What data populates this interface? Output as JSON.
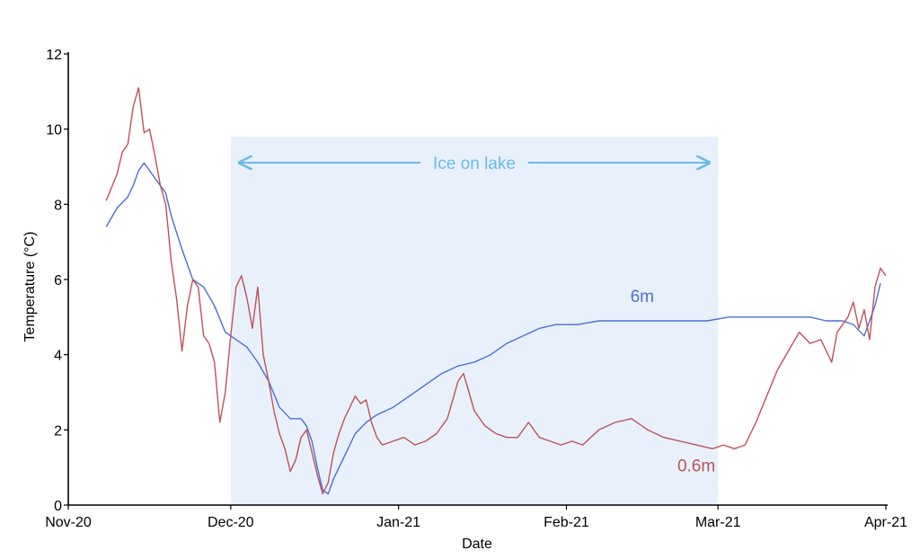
{
  "chart_data": {
    "type": "line",
    "xlabel": "Date",
    "ylabel": "Temperature (°C)",
    "ylim": [
      0,
      12
    ],
    "yticks": [
      0,
      2,
      4,
      6,
      8,
      10,
      12
    ],
    "xlim": [
      "2020-11-01",
      "2021-04-01"
    ],
    "xticks": [
      {
        "date": "2020-11-01",
        "label": "Nov-20"
      },
      {
        "date": "2020-12-01",
        "label": "Dec-20"
      },
      {
        "date": "2021-01-01",
        "label": "Jan-21"
      },
      {
        "date": "2021-02-01",
        "label": "Feb-21"
      },
      {
        "date": "2021-03-01",
        "label": "Mar-21"
      },
      {
        "date": "2021-04-01",
        "label": "Apr-21"
      }
    ],
    "grid": false,
    "annotation": {
      "label": "Ice on lake",
      "start": "2020-12-01",
      "end": "2021-03-01",
      "color": "#e8f1fb",
      "arrow_color": "#6ab8ee",
      "ymax": 9.8
    },
    "series": [
      {
        "name": "6m",
        "color": "#4a6fd6",
        "label_at": {
          "date": "2021-02-15",
          "value": 5.4
        },
        "points": [
          [
            "2020-11-08",
            7.4
          ],
          [
            "2020-11-10",
            7.9
          ],
          [
            "2020-11-12",
            8.2
          ],
          [
            "2020-11-13",
            8.5
          ],
          [
            "2020-11-14",
            8.9
          ],
          [
            "2020-11-15",
            9.1
          ],
          [
            "2020-11-17",
            8.7
          ],
          [
            "2020-11-19",
            8.3
          ],
          [
            "2020-11-20",
            7.7
          ],
          [
            "2020-11-22",
            6.8
          ],
          [
            "2020-11-24",
            6.0
          ],
          [
            "2020-11-26",
            5.8
          ],
          [
            "2020-11-28",
            5.3
          ],
          [
            "2020-11-30",
            4.6
          ],
          [
            "2020-12-01",
            4.5
          ],
          [
            "2020-12-02",
            4.4
          ],
          [
            "2020-12-04",
            4.2
          ],
          [
            "2020-12-06",
            3.8
          ],
          [
            "2020-12-08",
            3.3
          ],
          [
            "2020-12-10",
            2.6
          ],
          [
            "2020-12-12",
            2.3
          ],
          [
            "2020-12-14",
            2.3
          ],
          [
            "2020-12-15",
            2.1
          ],
          [
            "2020-12-16",
            1.7
          ],
          [
            "2020-12-17",
            1.0
          ],
          [
            "2020-12-18",
            0.4
          ],
          [
            "2020-12-19",
            0.3
          ],
          [
            "2020-12-20",
            0.7
          ],
          [
            "2020-12-22",
            1.3
          ],
          [
            "2020-12-24",
            1.9
          ],
          [
            "2020-12-26",
            2.2
          ],
          [
            "2020-12-28",
            2.4
          ],
          [
            "2020-12-31",
            2.6
          ],
          [
            "2021-01-03",
            2.9
          ],
          [
            "2021-01-06",
            3.2
          ],
          [
            "2021-01-09",
            3.5
          ],
          [
            "2021-01-12",
            3.7
          ],
          [
            "2021-01-15",
            3.8
          ],
          [
            "2021-01-18",
            4.0
          ],
          [
            "2021-01-21",
            4.3
          ],
          [
            "2021-01-24",
            4.5
          ],
          [
            "2021-01-27",
            4.7
          ],
          [
            "2021-01-30",
            4.8
          ],
          [
            "2021-02-03",
            4.8
          ],
          [
            "2021-02-07",
            4.9
          ],
          [
            "2021-02-11",
            4.9
          ],
          [
            "2021-02-15",
            4.9
          ],
          [
            "2021-02-19",
            4.9
          ],
          [
            "2021-02-23",
            4.9
          ],
          [
            "2021-02-27",
            4.9
          ],
          [
            "2021-03-03",
            5.0
          ],
          [
            "2021-03-07",
            5.0
          ],
          [
            "2021-03-11",
            5.0
          ],
          [
            "2021-03-15",
            5.0
          ],
          [
            "2021-03-18",
            5.0
          ],
          [
            "2021-03-21",
            4.9
          ],
          [
            "2021-03-24",
            4.9
          ],
          [
            "2021-03-26",
            4.8
          ],
          [
            "2021-03-28",
            4.5
          ],
          [
            "2021-03-29",
            4.9
          ],
          [
            "2021-03-30",
            5.3
          ],
          [
            "2021-03-31",
            5.9
          ]
        ]
      },
      {
        "name": "0.6m",
        "color": "#c0505a",
        "label_at": {
          "date": "2021-02-25",
          "value": 0.9
        },
        "points": [
          [
            "2020-11-08",
            8.1
          ],
          [
            "2020-11-10",
            8.8
          ],
          [
            "2020-11-11",
            9.4
          ],
          [
            "2020-11-12",
            9.6
          ],
          [
            "2020-11-13",
            10.6
          ],
          [
            "2020-11-14",
            11.1
          ],
          [
            "2020-11-15",
            9.9
          ],
          [
            "2020-11-16",
            10.0
          ],
          [
            "2020-11-17",
            9.3
          ],
          [
            "2020-11-18",
            8.5
          ],
          [
            "2020-11-19",
            8.0
          ],
          [
            "2020-11-20",
            6.5
          ],
          [
            "2020-11-21",
            5.5
          ],
          [
            "2020-11-22",
            4.1
          ],
          [
            "2020-11-23",
            5.3
          ],
          [
            "2020-11-24",
            6.0
          ],
          [
            "2020-11-25",
            5.8
          ],
          [
            "2020-11-26",
            4.5
          ],
          [
            "2020-11-27",
            4.3
          ],
          [
            "2020-11-28",
            3.8
          ],
          [
            "2020-11-29",
            2.2
          ],
          [
            "2020-11-30",
            3.0
          ],
          [
            "2020-12-01",
            4.5
          ],
          [
            "2020-12-02",
            5.8
          ],
          [
            "2020-12-03",
            6.1
          ],
          [
            "2020-12-04",
            5.5
          ],
          [
            "2020-12-05",
            4.7
          ],
          [
            "2020-12-06",
            5.8
          ],
          [
            "2020-12-07",
            4.0
          ],
          [
            "2020-12-08",
            3.3
          ],
          [
            "2020-12-09",
            2.5
          ],
          [
            "2020-12-10",
            1.9
          ],
          [
            "2020-12-11",
            1.5
          ],
          [
            "2020-12-12",
            0.9
          ],
          [
            "2020-12-13",
            1.2
          ],
          [
            "2020-12-14",
            1.8
          ],
          [
            "2020-12-15",
            2.0
          ],
          [
            "2020-12-16",
            1.4
          ],
          [
            "2020-12-17",
            0.8
          ],
          [
            "2020-12-18",
            0.3
          ],
          [
            "2020-12-19",
            0.6
          ],
          [
            "2020-12-20",
            1.4
          ],
          [
            "2020-12-21",
            1.9
          ],
          [
            "2020-12-22",
            2.3
          ],
          [
            "2020-12-23",
            2.6
          ],
          [
            "2020-12-24",
            2.9
          ],
          [
            "2020-12-25",
            2.7
          ],
          [
            "2020-12-26",
            2.8
          ],
          [
            "2020-12-27",
            2.2
          ],
          [
            "2020-12-28",
            1.8
          ],
          [
            "2020-12-29",
            1.6
          ],
          [
            "2020-12-31",
            1.7
          ],
          [
            "2021-01-02",
            1.8
          ],
          [
            "2021-01-04",
            1.6
          ],
          [
            "2021-01-06",
            1.7
          ],
          [
            "2021-01-08",
            1.9
          ],
          [
            "2021-01-10",
            2.3
          ],
          [
            "2021-01-11",
            2.8
          ],
          [
            "2021-01-12",
            3.3
          ],
          [
            "2021-01-13",
            3.5
          ],
          [
            "2021-01-14",
            3.0
          ],
          [
            "2021-01-15",
            2.5
          ],
          [
            "2021-01-17",
            2.1
          ],
          [
            "2021-01-19",
            1.9
          ],
          [
            "2021-01-21",
            1.8
          ],
          [
            "2021-01-23",
            1.8
          ],
          [
            "2021-01-25",
            2.2
          ],
          [
            "2021-01-27",
            1.8
          ],
          [
            "2021-01-29",
            1.7
          ],
          [
            "2021-01-31",
            1.6
          ],
          [
            "2021-02-02",
            1.7
          ],
          [
            "2021-02-04",
            1.6
          ],
          [
            "2021-02-07",
            2.0
          ],
          [
            "2021-02-10",
            2.2
          ],
          [
            "2021-02-13",
            2.3
          ],
          [
            "2021-02-16",
            2.0
          ],
          [
            "2021-02-19",
            1.8
          ],
          [
            "2021-02-22",
            1.7
          ],
          [
            "2021-02-25",
            1.6
          ],
          [
            "2021-02-28",
            1.5
          ],
          [
            "2021-03-02",
            1.6
          ],
          [
            "2021-03-04",
            1.5
          ],
          [
            "2021-03-06",
            1.6
          ],
          [
            "2021-03-08",
            2.2
          ],
          [
            "2021-03-10",
            2.9
          ],
          [
            "2021-03-12",
            3.6
          ],
          [
            "2021-03-14",
            4.1
          ],
          [
            "2021-03-16",
            4.6
          ],
          [
            "2021-03-18",
            4.3
          ],
          [
            "2021-03-20",
            4.4
          ],
          [
            "2021-03-22",
            3.8
          ],
          [
            "2021-03-23",
            4.6
          ],
          [
            "2021-03-25",
            5.0
          ],
          [
            "2021-03-26",
            5.4
          ],
          [
            "2021-03-27",
            4.7
          ],
          [
            "2021-03-28",
            5.2
          ],
          [
            "2021-03-29",
            4.4
          ],
          [
            "2021-03-30",
            5.8
          ],
          [
            "2021-03-31",
            6.3
          ],
          [
            "2021-04-01",
            6.1
          ]
        ]
      }
    ]
  }
}
